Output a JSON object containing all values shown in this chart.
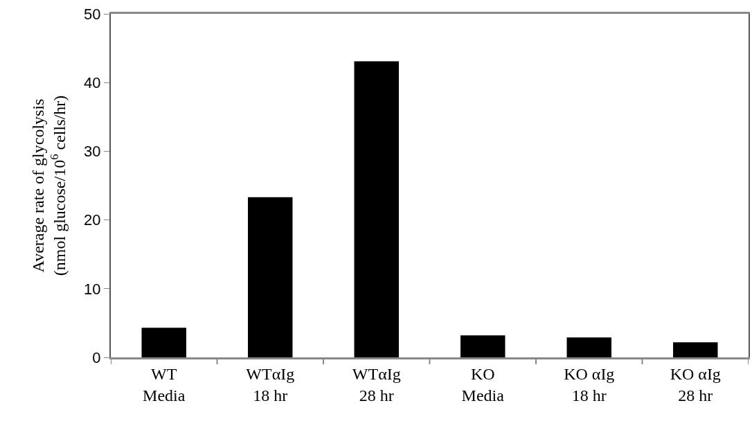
{
  "chart_data": {
    "type": "bar",
    "ylabel": "Average rate of glycolysis\n(nmol glucose/10$^{6}$ cells/hr)",
    "categories": [
      "WT\nMedia",
      "WTαIg\n18 hr",
      "WTαIg\n28 hr",
      "KO\nMedia",
      "KO αIg\n18 hr",
      "KO αIg\n28 hr"
    ],
    "values": [
      4.3,
      23.3,
      43.1,
      3.2,
      2.9,
      2.2
    ],
    "color": "#000000",
    "ylim": [
      0,
      50
    ],
    "yticks": [
      0,
      10,
      20,
      30,
      40,
      50
    ],
    "grid": false
  }
}
